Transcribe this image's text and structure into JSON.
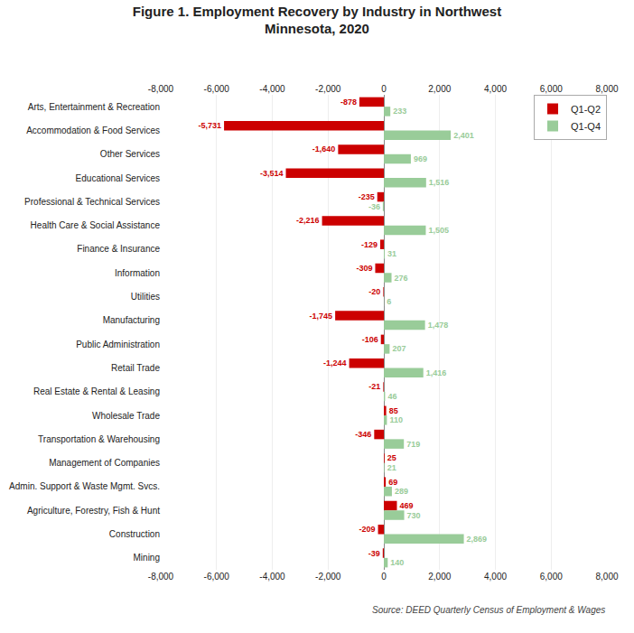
{
  "chart_data": {
    "type": "bar",
    "title": "Figure 1. Employment Recovery by Industry in Northwest\nMinnesota, 2020",
    "orientation": "horizontal",
    "categories": [
      "Arts, Entertainment & Recreation",
      "Accommodation & Food Services",
      "Other Services",
      "Educational Services",
      "Professional & Technical Services",
      "Health Care & Social Assistance",
      "Finance & Insurance",
      "Information",
      "Utilities",
      "Manufacturing",
      "Public Administration",
      "Retail Trade",
      "Real Estate & Rental & Leasing",
      "Wholesale Trade",
      "Transportation & Warehousing",
      "Management of Companies",
      "Admin. Support & Waste Mgmt. Svcs.",
      "Agriculture, Forestry, Fish & Hunt",
      "Construction",
      "Mining"
    ],
    "series": [
      {
        "name": "Q1-Q2",
        "color": "#cc0000",
        "values": [
          -878,
          -5731,
          -1640,
          -3514,
          -235,
          -2216,
          -129,
          -309,
          -20,
          -1745,
          -106,
          -1244,
          -21,
          85,
          -346,
          25,
          69,
          469,
          -209,
          -39
        ],
        "value_labels": [
          "-878",
          "-5,731",
          "-1,640",
          "-3,514",
          "-235",
          "-2,216",
          "-129",
          "-309",
          "-20",
          "-1,745",
          "-106",
          "-1,244",
          "-21",
          "85",
          "-346",
          "25",
          "69",
          "469",
          "-209",
          "-39"
        ]
      },
      {
        "name": "Q1-Q4",
        "color": "#99cc99",
        "values": [
          233,
          2401,
          969,
          1516,
          -36,
          1505,
          31,
          276,
          6,
          1478,
          207,
          1416,
          46,
          110,
          719,
          21,
          289,
          730,
          2869,
          140
        ],
        "value_labels": [
          "233",
          "2,401",
          "969",
          "1,516",
          "-36",
          "1,505",
          "31",
          "276",
          "6",
          "1,478",
          "207",
          "1,416",
          "46",
          "110",
          "719",
          "21",
          "289",
          "730",
          "2,869",
          "140"
        ]
      }
    ],
    "xlim": [
      -8000,
      8000
    ],
    "xticks": [
      {
        "value": -8000,
        "label": "-8,000"
      },
      {
        "value": -6000,
        "label": "-6,000"
      },
      {
        "value": -4000,
        "label": "-4,000"
      },
      {
        "value": -2000,
        "label": "-2,000"
      },
      0,
      {
        "value": 2000,
        "label": "2,000"
      },
      {
        "value": 4000,
        "label": "4,000"
      },
      {
        "value": 6000,
        "label": "6,000"
      },
      {
        "value": 8000,
        "label": "8,000"
      }
    ],
    "grid": true,
    "legend": "upper right",
    "data_labels": true,
    "annotations": [
      "Source: DEED Quarterly Census of Employment & Wages"
    ]
  }
}
